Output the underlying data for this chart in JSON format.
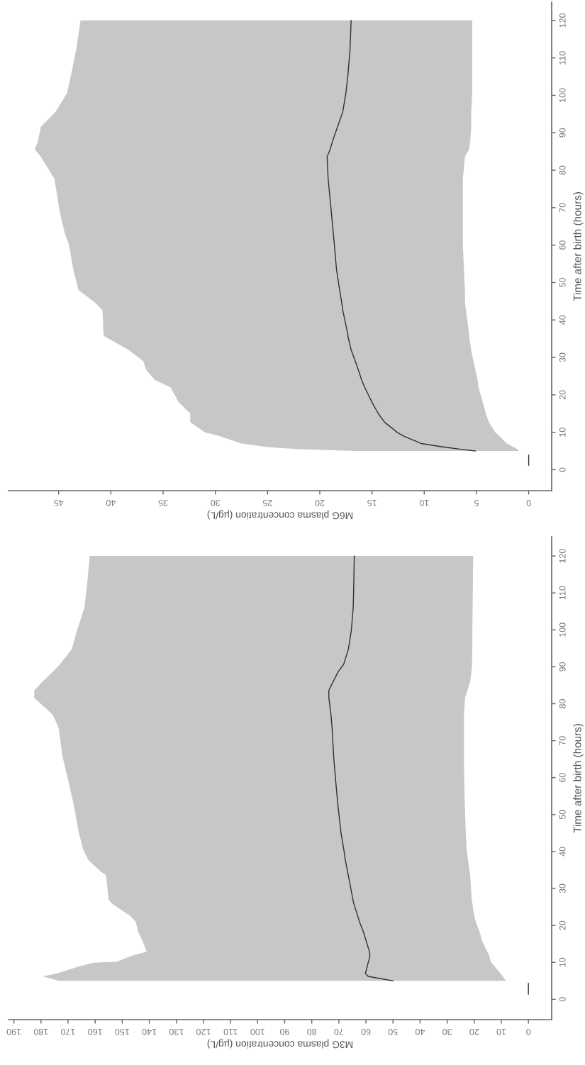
{
  "chart_data": [
    {
      "type": "line",
      "orientation": "horizontal",
      "xlabel": "M6G plasma concentration (µg/L)",
      "ylabel": "Time after birth (hours)",
      "xlim": [
        49.8,
        -2.2
      ],
      "xticks": [
        0,
        5,
        10,
        15,
        20,
        25,
        30,
        35,
        40,
        45
      ],
      "ylim": [
        -5.6,
        124.9
      ],
      "yticks": [
        0,
        10,
        20,
        30,
        40,
        50,
        60,
        70,
        80,
        90,
        100,
        110,
        120
      ],
      "grid": false,
      "marker": "none",
      "line_style": "solid",
      "series": [
        {
          "color": "#303030",
          "x": [
            5,
            5.5,
            6,
            7,
            9,
            10,
            12.7,
            15,
            18,
            22,
            24,
            26.6,
            29,
            32,
            35.6,
            36,
            42.6,
            44.6,
            48,
            53.5,
            60,
            63,
            69,
            77.7,
            83.6,
            85.6,
            87.6,
            91.6,
            95.6,
            100.6,
            105.6,
            112.6,
            120
          ],
          "values": [
            5.1,
            6.6,
            8,
            10.3,
            12,
            12.6,
            13.8,
            14.4,
            15,
            15.7,
            16,
            16.3,
            16.6,
            17,
            17.3,
            17.3,
            17.8,
            17.9,
            18.1,
            18.4,
            18.6,
            18.7,
            18.9,
            19.2,
            19.3,
            19.0,
            18.8,
            18.3,
            17.8,
            17.5,
            17.3,
            17.1,
            17
          ],
          "lower": [
            0.9,
            1.1,
            1.4,
            2.1,
            2.8,
            3.2,
            3.8,
            4.1,
            4.4,
            4.8,
            4.9,
            5.1,
            5.3,
            5.5,
            5.7,
            5.7,
            6.0,
            6.1,
            6.1,
            6.2,
            6.3,
            6.3,
            6.3,
            6.3,
            6.1,
            5.7,
            5.6,
            5.5,
            5.5,
            5.4,
            5.4,
            5.4,
            5.4
          ],
          "upper": [
            16.6,
            22,
            24.9,
            27.5,
            29.6,
            31,
            32.4,
            32.4,
            33.5,
            34.3,
            35.8,
            36.6,
            36.9,
            38.3,
            40.6,
            40.7,
            40.8,
            41.5,
            43.1,
            43.6,
            44,
            44.4,
            44.9,
            45.4,
            46.7,
            47.3,
            47,
            46.7,
            45.3,
            44.2,
            43.8,
            43.3,
            42.9
          ]
        },
        {
          "color": "#303030",
          "x": [
            1.2,
            3.9
          ],
          "values": [
            0,
            0
          ]
        }
      ]
    },
    {
      "type": "line",
      "orientation": "horizontal",
      "xlabel": "M3G plasma concentration (µg/L)",
      "ylabel": "Time after birth (hours)",
      "xlim": [
        192,
        -8.6
      ],
      "xticks": [
        0,
        10,
        20,
        30,
        40,
        50,
        60,
        70,
        80,
        90,
        100,
        110,
        120,
        130,
        140,
        150,
        160,
        170,
        180,
        190
      ],
      "ylim": [
        -5.5,
        125.2
      ],
      "yticks": [
        0,
        10,
        20,
        30,
        40,
        50,
        60,
        70,
        80,
        90,
        100,
        110,
        120
      ],
      "grid": false,
      "marker": "none",
      "line_style": "solid",
      "series": [
        {
          "color": "#303030",
          "x": [
            5,
            6.2,
            7,
            8.9,
            9.9,
            10.2,
            11.9,
            12.9,
            16,
            18,
            21,
            22.5,
            26,
            27,
            33.6,
            34.6,
            37.7,
            40.7,
            45,
            49,
            53,
            59.4,
            65.5,
            73.5,
            77,
            81.6,
            83.6,
            85.7,
            88.7,
            90.7,
            94.7,
            99.8,
            105.9,
            112,
            120
          ],
          "values": [
            50,
            59.2,
            60.2,
            59.5,
            59.2,
            59,
            58.5,
            58.7,
            60,
            60.8,
            62.4,
            63,
            64.5,
            64.8,
            66.5,
            66.8,
            67.6,
            68.2,
            69.2,
            69.8,
            70.4,
            71.2,
            71.9,
            72.5,
            72.9,
            73.7,
            73.7,
            72.3,
            70.2,
            68.2,
            66.5,
            65.4,
            64.7,
            64.5,
            64.3
          ],
          "lower": [
            8.3,
            9.5,
            10.3,
            12.5,
            13.6,
            13.9,
            14.5,
            15.2,
            17.2,
            17.9,
            19.4,
            20,
            20.7,
            20.9,
            21.5,
            21.7,
            22.3,
            22.8,
            23.1,
            23.3,
            23.5,
            23.7,
            23.8,
            23.8,
            23.8,
            23.4,
            22.5,
            21.6,
            21,
            20.8,
            20.7,
            20.7,
            20.6,
            20.5,
            20.4
          ],
          "upper": [
            173.5,
            179.3,
            174,
            166,
            160.5,
            152,
            146,
            141,
            142.6,
            144,
            145,
            147,
            154,
            155,
            156,
            158,
            162.5,
            164.5,
            166,
            167,
            168,
            170,
            172,
            173.5,
            175.6,
            182.5,
            182.5,
            179.8,
            175.6,
            173,
            168.7,
            166.7,
            164,
            163,
            162
          ]
        },
        {
          "color": "#303030",
          "x": [
            1.4,
            4.3
          ],
          "values": [
            0,
            0
          ]
        }
      ]
    }
  ]
}
